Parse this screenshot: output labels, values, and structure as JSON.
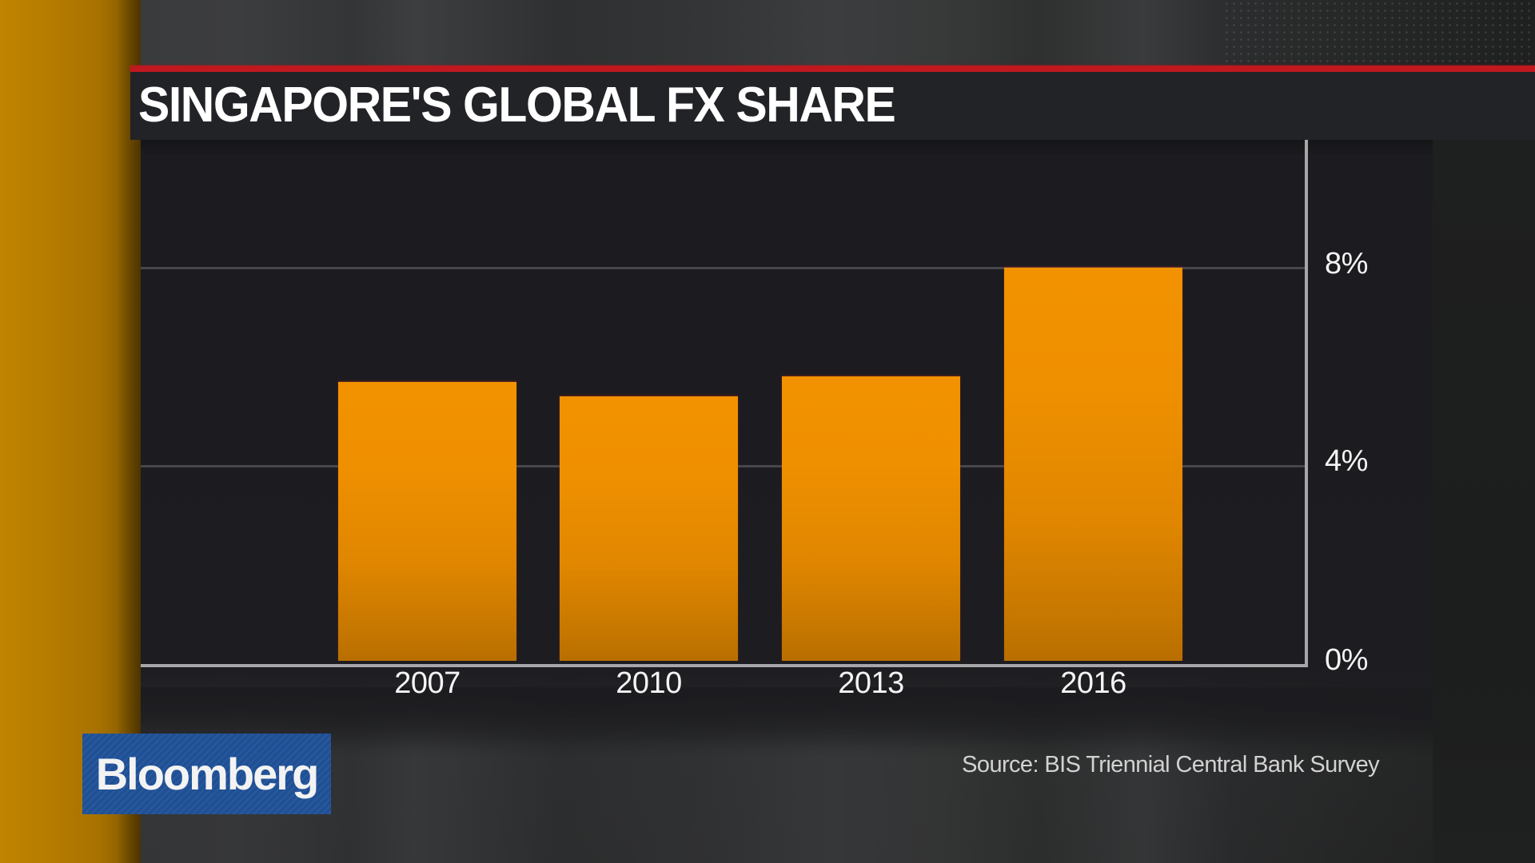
{
  "header": {
    "title": "SINGAPORE'S GLOBAL FX SHARE"
  },
  "chart_data": {
    "type": "bar",
    "title": "SINGAPORE'S GLOBAL FX SHARE",
    "categories": [
      "2007",
      "2010",
      "2013",
      "2016"
    ],
    "values": [
      5.7,
      5.4,
      5.8,
      8.0
    ],
    "unit": "%",
    "xlabel": "",
    "ylabel": "",
    "ylim": [
      0,
      10
    ],
    "yticks": [
      0,
      4,
      8
    ],
    "ytick_labels": [
      "0%",
      "4%",
      "8%"
    ],
    "y_axis_position": "right",
    "grid": true,
    "legend": null,
    "bar_color": "#f29200",
    "source": "Source: BIS Triennial Central Bank Survey"
  },
  "axis": {
    "y_labels": [
      {
        "label": "8%",
        "value": 8
      },
      {
        "label": "4%",
        "value": 4
      },
      {
        "label": "0%",
        "value": 0
      }
    ]
  },
  "branding": {
    "logo_text": "Bloomberg",
    "logo_color": "#1f5096",
    "accent_red": "#c0181f",
    "accent_orange": "#f29200"
  },
  "footer": {
    "source": "Source: BIS Triennial Central Bank Survey"
  }
}
